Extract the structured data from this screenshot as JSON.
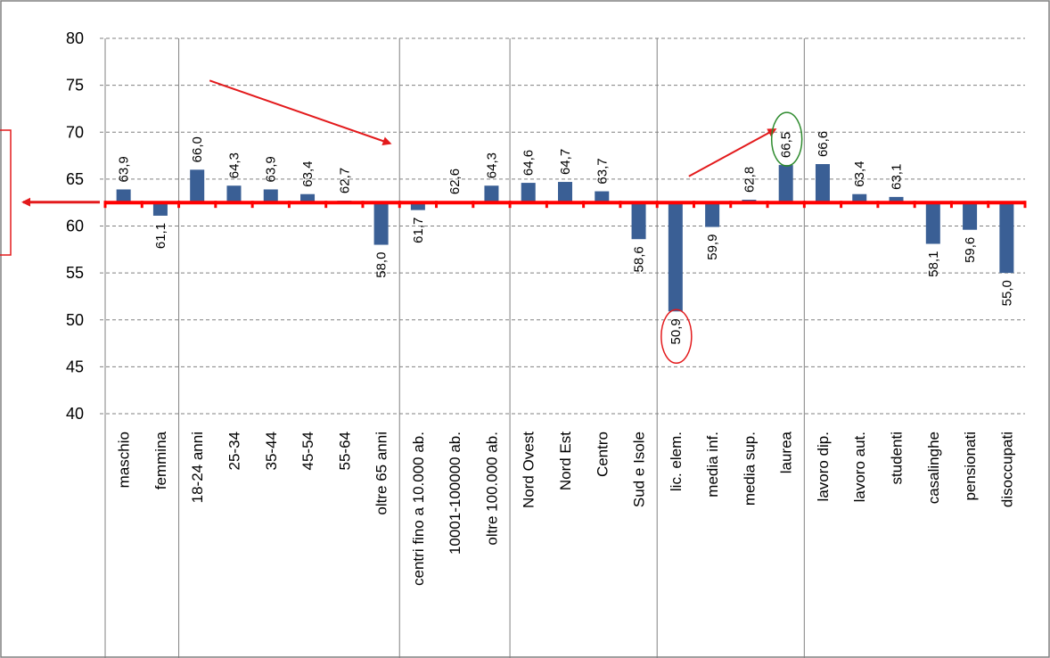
{
  "chart_data": {
    "type": "bar",
    "title": "",
    "xlabel": "",
    "ylabel": "",
    "ylim": [
      40,
      80
    ],
    "yticks": [
      "40",
      "45",
      "50",
      "55",
      "60",
      "65",
      "70",
      "75",
      "80"
    ],
    "baseline": 62.5,
    "grid": true,
    "categories": [
      "maschio",
      "femmina",
      "18-24 anni",
      "25-34",
      "35-44",
      "45-54",
      "55-64",
      "oltre 65 anni",
      "centri fino a 10.000 ab.",
      "10001-100000 ab.",
      "oltre 100.000 ab.",
      "Nord Ovest",
      "Nord Est",
      "Centro",
      "Sud e Isole",
      "lic. elem.",
      "media inf.",
      "media sup.",
      "laurea",
      "lavoro dip.",
      "lavoro aut.",
      "studenti",
      "casalinghe",
      "pensionati",
      "disoccupati"
    ],
    "values": [
      63.9,
      61.1,
      66.0,
      64.3,
      63.9,
      63.4,
      62.7,
      58.0,
      61.7,
      62.6,
      64.3,
      64.6,
      64.7,
      63.7,
      58.6,
      50.9,
      59.9,
      62.8,
      66.5,
      66.6,
      63.4,
      63.1,
      58.1,
      59.6,
      55.0
    ],
    "data_labels": [
      "63,9",
      "61,1",
      "66,0",
      "64,3",
      "63,9",
      "63,4",
      "62,7",
      "58,0",
      "61,7",
      "62,6",
      "64,3",
      "64,6",
      "64,7",
      "63,7",
      "58,6",
      "50,9",
      "59,9",
      "62,8",
      "66,5",
      "66,6",
      "63,4",
      "63,1",
      "58,1",
      "59,6",
      "55,0"
    ],
    "groups": [
      {
        "start": 0,
        "count": 2
      },
      {
        "start": 2,
        "count": 6
      },
      {
        "start": 8,
        "count": 3
      },
      {
        "start": 11,
        "count": 4
      },
      {
        "start": 15,
        "count": 4
      },
      {
        "start": 19,
        "count": 6
      }
    ],
    "highlighted": [
      {
        "index": 15,
        "ring": "red"
      },
      {
        "index": 18,
        "ring": "green"
      }
    ],
    "colors": {
      "bar": "#3a5f95",
      "baseline": "#ff0000",
      "arrow": "#e31a1c",
      "grid": "#808080",
      "ring_red": "#e31a1c",
      "ring_green": "#2e8b2e",
      "frame": "#808080"
    }
  }
}
